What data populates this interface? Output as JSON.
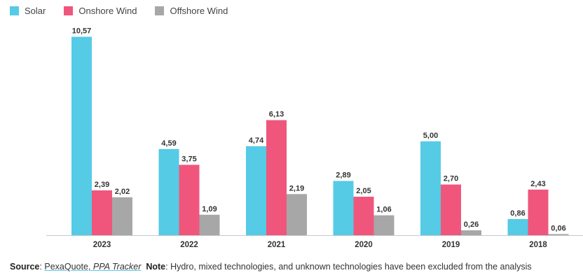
{
  "legend": {
    "items": [
      {
        "label": "Solar",
        "color": "#55cbe6"
      },
      {
        "label": "Onshore Wind",
        "color": "#f0567c"
      },
      {
        "label": "Offshore Wind",
        "color": "#a7a7a7"
      }
    ]
  },
  "chart_data": {
    "type": "bar",
    "categories": [
      "2023",
      "2022",
      "2021",
      "2020",
      "2019",
      "2018"
    ],
    "series": [
      {
        "name": "Solar",
        "color": "#55cbe6",
        "values": [
          10.57,
          4.59,
          4.74,
          2.89,
          5.0,
          0.86
        ],
        "labels": [
          "10,57",
          "4,59",
          "4,74",
          "2,89",
          "5,00",
          "0,86"
        ]
      },
      {
        "name": "Onshore Wind",
        "color": "#f0567c",
        "values": [
          2.39,
          3.75,
          6.13,
          2.05,
          2.7,
          2.43
        ],
        "labels": [
          "2,39",
          "3,75",
          "6,13",
          "2,05",
          "2,70",
          "2,43"
        ]
      },
      {
        "name": "Offshore Wind",
        "color": "#a7a7a7",
        "values": [
          2.02,
          1.09,
          2.19,
          1.06,
          0.26,
          0.06
        ],
        "labels": [
          "2,02",
          "1,09",
          "2,19",
          "1,06",
          "0,26",
          "0,06"
        ]
      }
    ],
    "ylim": [
      0,
      11
    ],
    "grid": false,
    "legend_position": "top-left"
  },
  "footer": {
    "source_label": "Source",
    "source_sep": ":",
    "source_link_a": "PexaQuote",
    "source_link_sep": ", ",
    "source_link_b": "PPA Tracker",
    "note_label": "Note",
    "note_text": ": Hydro, mixed technologies, and unknown technologies have been excluded from the analysis"
  }
}
